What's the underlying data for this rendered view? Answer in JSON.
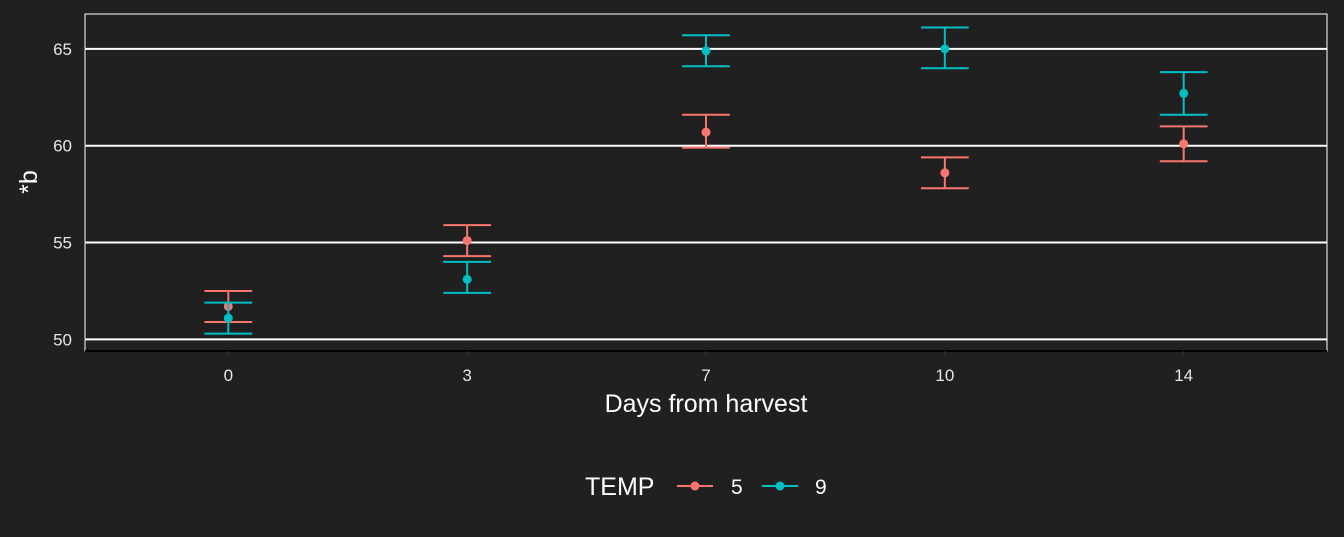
{
  "chart_data": {
    "type": "scatter",
    "title": "",
    "xlabel": "Days from harvest",
    "ylabel": "*b",
    "categories": [
      "0",
      "3",
      "7",
      "10",
      "14"
    ],
    "ylim": [
      49.4,
      66.8
    ],
    "yticks": [
      50,
      55,
      60,
      65
    ],
    "grid": "horizontal-major",
    "legend": {
      "title": "TEMP",
      "position": "bottom"
    },
    "series": [
      {
        "name": "5",
        "color": "#f8766d",
        "values": [
          51.7,
          55.1,
          60.7,
          58.6,
          60.1
        ],
        "lower": [
          50.9,
          54.3,
          59.9,
          57.8,
          59.2
        ],
        "upper": [
          52.5,
          55.9,
          61.6,
          59.4,
          61.0
        ]
      },
      {
        "name": "9",
        "color": "#00bfc4",
        "values": [
          51.1,
          53.1,
          64.9,
          65.0,
          62.7
        ],
        "lower": [
          50.3,
          52.4,
          64.1,
          64.0,
          61.6
        ],
        "upper": [
          51.9,
          54.0,
          65.7,
          66.1,
          63.8
        ]
      }
    ]
  }
}
